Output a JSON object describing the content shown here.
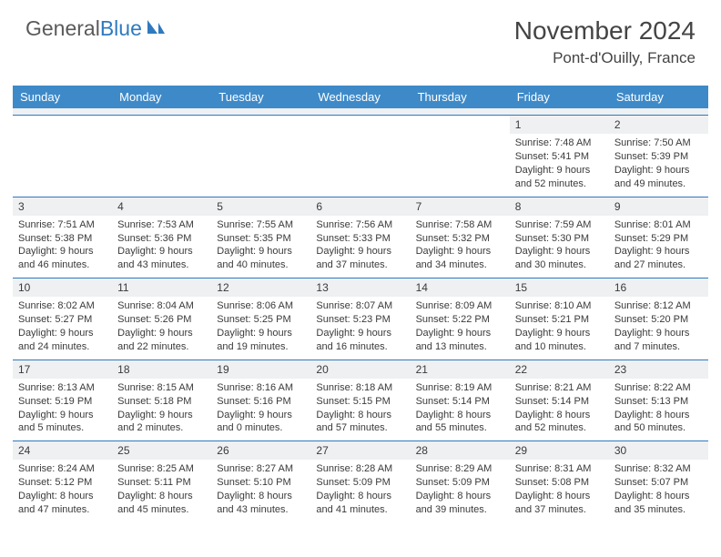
{
  "brand": {
    "word1": "General",
    "word2": "Blue"
  },
  "title": "November 2024",
  "location": "Pont-d'Ouilly, France",
  "colors": {
    "header_bg": "#3e8ac9",
    "rule": "#2f7abf",
    "shade": "#eef0f2",
    "text": "#3a3a3a"
  },
  "day_labels": [
    "Sunday",
    "Monday",
    "Tuesday",
    "Wednesday",
    "Thursday",
    "Friday",
    "Saturday"
  ],
  "weeks": [
    [
      {
        "day": null
      },
      {
        "day": null
      },
      {
        "day": null
      },
      {
        "day": null
      },
      {
        "day": null
      },
      {
        "day": "1",
        "sunrise": "Sunrise: 7:48 AM",
        "sunset": "Sunset: 5:41 PM",
        "daylight1": "Daylight: 9 hours",
        "daylight2": "and 52 minutes."
      },
      {
        "day": "2",
        "sunrise": "Sunrise: 7:50 AM",
        "sunset": "Sunset: 5:39 PM",
        "daylight1": "Daylight: 9 hours",
        "daylight2": "and 49 minutes."
      }
    ],
    [
      {
        "day": "3",
        "sunrise": "Sunrise: 7:51 AM",
        "sunset": "Sunset: 5:38 PM",
        "daylight1": "Daylight: 9 hours",
        "daylight2": "and 46 minutes."
      },
      {
        "day": "4",
        "sunrise": "Sunrise: 7:53 AM",
        "sunset": "Sunset: 5:36 PM",
        "daylight1": "Daylight: 9 hours",
        "daylight2": "and 43 minutes."
      },
      {
        "day": "5",
        "sunrise": "Sunrise: 7:55 AM",
        "sunset": "Sunset: 5:35 PM",
        "daylight1": "Daylight: 9 hours",
        "daylight2": "and 40 minutes."
      },
      {
        "day": "6",
        "sunrise": "Sunrise: 7:56 AM",
        "sunset": "Sunset: 5:33 PM",
        "daylight1": "Daylight: 9 hours",
        "daylight2": "and 37 minutes."
      },
      {
        "day": "7",
        "sunrise": "Sunrise: 7:58 AM",
        "sunset": "Sunset: 5:32 PM",
        "daylight1": "Daylight: 9 hours",
        "daylight2": "and 34 minutes."
      },
      {
        "day": "8",
        "sunrise": "Sunrise: 7:59 AM",
        "sunset": "Sunset: 5:30 PM",
        "daylight1": "Daylight: 9 hours",
        "daylight2": "and 30 minutes."
      },
      {
        "day": "9",
        "sunrise": "Sunrise: 8:01 AM",
        "sunset": "Sunset: 5:29 PM",
        "daylight1": "Daylight: 9 hours",
        "daylight2": "and 27 minutes."
      }
    ],
    [
      {
        "day": "10",
        "sunrise": "Sunrise: 8:02 AM",
        "sunset": "Sunset: 5:27 PM",
        "daylight1": "Daylight: 9 hours",
        "daylight2": "and 24 minutes."
      },
      {
        "day": "11",
        "sunrise": "Sunrise: 8:04 AM",
        "sunset": "Sunset: 5:26 PM",
        "daylight1": "Daylight: 9 hours",
        "daylight2": "and 22 minutes."
      },
      {
        "day": "12",
        "sunrise": "Sunrise: 8:06 AM",
        "sunset": "Sunset: 5:25 PM",
        "daylight1": "Daylight: 9 hours",
        "daylight2": "and 19 minutes."
      },
      {
        "day": "13",
        "sunrise": "Sunrise: 8:07 AM",
        "sunset": "Sunset: 5:23 PM",
        "daylight1": "Daylight: 9 hours",
        "daylight2": "and 16 minutes."
      },
      {
        "day": "14",
        "sunrise": "Sunrise: 8:09 AM",
        "sunset": "Sunset: 5:22 PM",
        "daylight1": "Daylight: 9 hours",
        "daylight2": "and 13 minutes."
      },
      {
        "day": "15",
        "sunrise": "Sunrise: 8:10 AM",
        "sunset": "Sunset: 5:21 PM",
        "daylight1": "Daylight: 9 hours",
        "daylight2": "and 10 minutes."
      },
      {
        "day": "16",
        "sunrise": "Sunrise: 8:12 AM",
        "sunset": "Sunset: 5:20 PM",
        "daylight1": "Daylight: 9 hours",
        "daylight2": "and 7 minutes."
      }
    ],
    [
      {
        "day": "17",
        "sunrise": "Sunrise: 8:13 AM",
        "sunset": "Sunset: 5:19 PM",
        "daylight1": "Daylight: 9 hours",
        "daylight2": "and 5 minutes."
      },
      {
        "day": "18",
        "sunrise": "Sunrise: 8:15 AM",
        "sunset": "Sunset: 5:18 PM",
        "daylight1": "Daylight: 9 hours",
        "daylight2": "and 2 minutes."
      },
      {
        "day": "19",
        "sunrise": "Sunrise: 8:16 AM",
        "sunset": "Sunset: 5:16 PM",
        "daylight1": "Daylight: 9 hours",
        "daylight2": "and 0 minutes."
      },
      {
        "day": "20",
        "sunrise": "Sunrise: 8:18 AM",
        "sunset": "Sunset: 5:15 PM",
        "daylight1": "Daylight: 8 hours",
        "daylight2": "and 57 minutes."
      },
      {
        "day": "21",
        "sunrise": "Sunrise: 8:19 AM",
        "sunset": "Sunset: 5:14 PM",
        "daylight1": "Daylight: 8 hours",
        "daylight2": "and 55 minutes."
      },
      {
        "day": "22",
        "sunrise": "Sunrise: 8:21 AM",
        "sunset": "Sunset: 5:14 PM",
        "daylight1": "Daylight: 8 hours",
        "daylight2": "and 52 minutes."
      },
      {
        "day": "23",
        "sunrise": "Sunrise: 8:22 AM",
        "sunset": "Sunset: 5:13 PM",
        "daylight1": "Daylight: 8 hours",
        "daylight2": "and 50 minutes."
      }
    ],
    [
      {
        "day": "24",
        "sunrise": "Sunrise: 8:24 AM",
        "sunset": "Sunset: 5:12 PM",
        "daylight1": "Daylight: 8 hours",
        "daylight2": "and 47 minutes."
      },
      {
        "day": "25",
        "sunrise": "Sunrise: 8:25 AM",
        "sunset": "Sunset: 5:11 PM",
        "daylight1": "Daylight: 8 hours",
        "daylight2": "and 45 minutes."
      },
      {
        "day": "26",
        "sunrise": "Sunrise: 8:27 AM",
        "sunset": "Sunset: 5:10 PM",
        "daylight1": "Daylight: 8 hours",
        "daylight2": "and 43 minutes."
      },
      {
        "day": "27",
        "sunrise": "Sunrise: 8:28 AM",
        "sunset": "Sunset: 5:09 PM",
        "daylight1": "Daylight: 8 hours",
        "daylight2": "and 41 minutes."
      },
      {
        "day": "28",
        "sunrise": "Sunrise: 8:29 AM",
        "sunset": "Sunset: 5:09 PM",
        "daylight1": "Daylight: 8 hours",
        "daylight2": "and 39 minutes."
      },
      {
        "day": "29",
        "sunrise": "Sunrise: 8:31 AM",
        "sunset": "Sunset: 5:08 PM",
        "daylight1": "Daylight: 8 hours",
        "daylight2": "and 37 minutes."
      },
      {
        "day": "30",
        "sunrise": "Sunrise: 8:32 AM",
        "sunset": "Sunset: 5:07 PM",
        "daylight1": "Daylight: 8 hours",
        "daylight2": "and 35 minutes."
      }
    ]
  ]
}
